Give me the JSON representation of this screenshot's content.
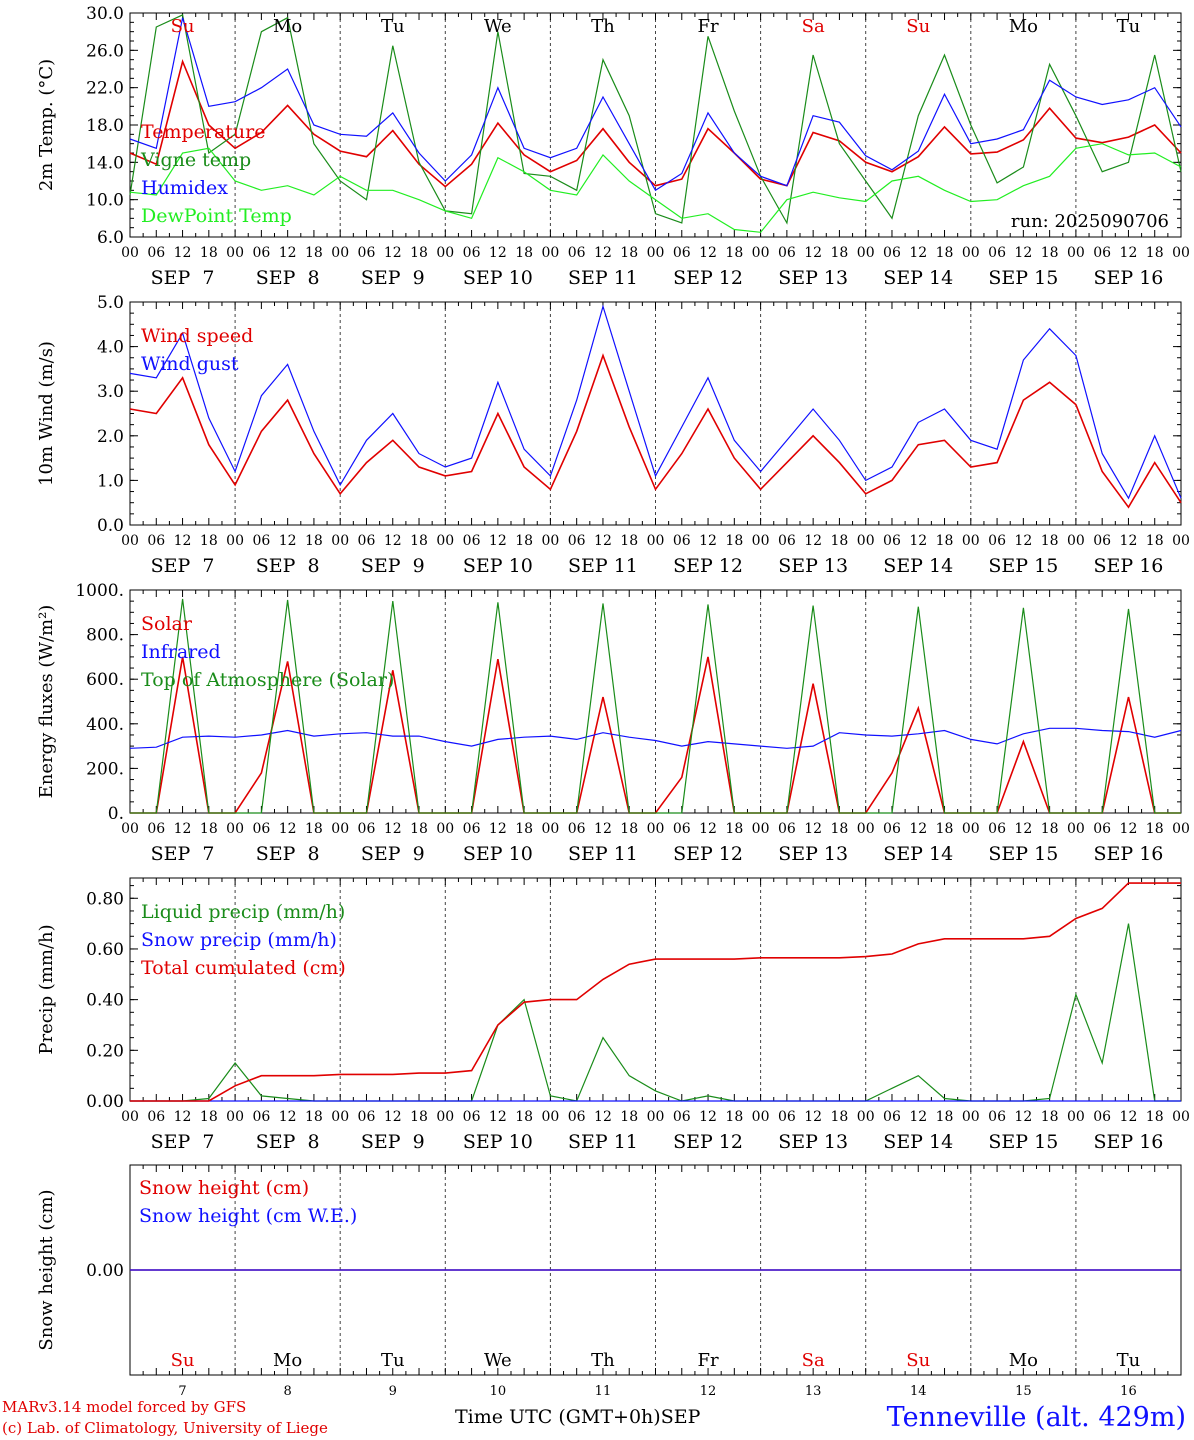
{
  "footer": {
    "model_line": "MARv3.14 model forced by GFS",
    "lab_line": "(c) Lab. of Climatology, University of Liege",
    "time_label": "Time UTC (GMT+0h)",
    "month_label": "SEP",
    "station": "Tenneville (alt. 429m)"
  },
  "colors": {
    "red": "#e00000",
    "green": "#1a8c1a",
    "blue": "#1010ff",
    "lightgreen": "#22ee22",
    "black": "#000000",
    "grid": "#555555"
  },
  "x_axis": {
    "days": [
      "SEP  7",
      "SEP  8",
      "SEP  9",
      "SEP 10",
      "SEP 11",
      "SEP 12",
      "SEP 13",
      "SEP 14",
      "SEP 15",
      "SEP 16"
    ],
    "day_numbers": [
      "7",
      "8",
      "9",
      "10",
      "11",
      "12",
      "13",
      "14",
      "15",
      "16"
    ],
    "weekdays": [
      "Su",
      "Mo",
      "Tu",
      "We",
      "Th",
      "Fr",
      "Sa",
      "Su",
      "Mo",
      "Tu"
    ],
    "weekday_colors": [
      "red",
      "black",
      "black",
      "black",
      "black",
      "black",
      "red",
      "red",
      "black",
      "black"
    ],
    "hour_ticks": [
      "00",
      "06",
      "12",
      "18"
    ],
    "final_tick": "00"
  },
  "chart_data": [
    {
      "type": "line",
      "ylabel": "2m Temp. (°C)",
      "ylim": [
        6,
        30
      ],
      "ytick_labels": [
        "6.0",
        "10.0",
        "14.0",
        "18.0",
        "22.0",
        "26.0",
        "30.0"
      ],
      "annotation": "run: 2025090706",
      "show_weekdays": true,
      "x_hours": [
        0,
        6,
        12,
        18,
        24,
        30,
        36,
        42,
        48,
        54,
        60,
        66,
        72,
        78,
        84,
        90,
        96,
        102,
        108,
        114,
        120,
        126,
        132,
        138,
        144,
        150,
        156,
        162,
        168,
        174,
        180,
        186,
        192,
        198,
        204,
        210,
        216,
        222,
        228,
        234,
        240
      ],
      "series": [
        {
          "name": "Temperature",
          "color": "red",
          "values": [
            15.0,
            13.8,
            24.8,
            18.0,
            15.5,
            17.2,
            20.1,
            17.0,
            15.2,
            14.6,
            17.4,
            13.8,
            11.4,
            13.8,
            18.2,
            14.8,
            13.0,
            14.2,
            17.6,
            14.0,
            11.5,
            12.2,
            17.6,
            15.0,
            12.2,
            11.5,
            17.2,
            16.3,
            14.0,
            13.0,
            14.6,
            17.8,
            14.9,
            15.1,
            16.4,
            19.8,
            16.6,
            16.1,
            16.7,
            18.0,
            15.0
          ]
        },
        {
          "name": "Vigne temp",
          "color": "green",
          "values": [
            10.5,
            28.5,
            29.8,
            15.0,
            17.0,
            28.0,
            29.5,
            16.0,
            12.0,
            10.0,
            26.5,
            14.0,
            8.8,
            8.5,
            28.0,
            12.8,
            12.5,
            11.0,
            25.0,
            19.0,
            8.5,
            7.5,
            27.5,
            19.5,
            12.5,
            7.5,
            25.5,
            16.0,
            12.0,
            8.0,
            19.0,
            25.5,
            18.0,
            11.8,
            13.5,
            24.5,
            19.0,
            13.0,
            14.0,
            25.5,
            13.0
          ]
        },
        {
          "name": "Humidex",
          "color": "blue",
          "values": [
            16.5,
            15.5,
            29.5,
            20.0,
            20.5,
            22.0,
            24.0,
            18.0,
            17.0,
            16.8,
            19.3,
            15.0,
            12.0,
            14.8,
            22.0,
            15.5,
            14.5,
            15.5,
            21.0,
            16.0,
            11.0,
            12.8,
            19.3,
            15.0,
            12.5,
            11.5,
            19.0,
            18.3,
            14.7,
            13.2,
            15.2,
            21.3,
            16.0,
            16.5,
            17.5,
            22.8,
            21.0,
            20.2,
            20.7,
            22.0,
            17.8
          ]
        },
        {
          "name": "DewPoint Temp",
          "color": "lightgreen",
          "values": [
            10.8,
            10.5,
            15.0,
            15.5,
            12.0,
            11.0,
            11.5,
            10.5,
            12.5,
            11.0,
            11.0,
            10.0,
            8.8,
            8.0,
            14.5,
            13.0,
            11.0,
            10.5,
            14.8,
            12.0,
            10.0,
            8.0,
            8.5,
            6.8,
            6.5,
            10.0,
            10.8,
            10.2,
            9.8,
            12.0,
            12.5,
            11.0,
            9.8,
            10.0,
            11.5,
            12.5,
            15.5,
            16.0,
            14.8,
            15.0,
            13.5
          ]
        }
      ]
    },
    {
      "type": "line",
      "ylabel": "10m Wind (m/s)",
      "ylim": [
        0,
        5
      ],
      "ytick_labels": [
        "0.0",
        "1.0",
        "2.0",
        "3.0",
        "4.0",
        "5.0"
      ],
      "show_weekdays": false,
      "x_hours": [
        0,
        6,
        12,
        18,
        24,
        30,
        36,
        42,
        48,
        54,
        60,
        66,
        72,
        78,
        84,
        90,
        96,
        102,
        108,
        114,
        120,
        126,
        132,
        138,
        144,
        150,
        156,
        162,
        168,
        174,
        180,
        186,
        192,
        198,
        204,
        210,
        216,
        222,
        228,
        234,
        240
      ],
      "series": [
        {
          "name": "Wind speed",
          "color": "red",
          "values": [
            2.6,
            2.5,
            3.3,
            1.8,
            0.9,
            2.1,
            2.8,
            1.6,
            0.7,
            1.4,
            1.9,
            1.3,
            1.1,
            1.2,
            2.5,
            1.3,
            0.8,
            2.1,
            3.8,
            2.2,
            0.8,
            1.6,
            2.6,
            1.5,
            0.8,
            1.4,
            2.0,
            1.4,
            0.7,
            1.0,
            1.8,
            1.9,
            1.3,
            1.4,
            2.8,
            3.2,
            2.7,
            1.2,
            0.4,
            1.4,
            0.5
          ]
        },
        {
          "name": "Wind gust",
          "color": "blue",
          "values": [
            3.4,
            3.3,
            4.3,
            2.4,
            1.2,
            2.9,
            3.6,
            2.1,
            0.9,
            1.9,
            2.5,
            1.6,
            1.3,
            1.5,
            3.2,
            1.7,
            1.1,
            2.8,
            4.9,
            3.0,
            1.1,
            2.2,
            3.3,
            1.9,
            1.2,
            1.9,
            2.6,
            1.9,
            1.0,
            1.3,
            2.3,
            2.6,
            1.9,
            1.7,
            3.7,
            4.4,
            3.8,
            1.6,
            0.6,
            2.0,
            0.6
          ]
        }
      ]
    },
    {
      "type": "line",
      "ylabel": "Energy fluxes (W/m²)",
      "ylim": [
        0,
        1000
      ],
      "ytick_labels": [
        "0.",
        "200.",
        "400.",
        "600.",
        "800.",
        "1000."
      ],
      "show_weekdays": false,
      "x_hours": [
        0,
        6,
        12,
        18,
        24,
        30,
        36,
        42,
        48,
        54,
        60,
        66,
        72,
        78,
        84,
        90,
        96,
        102,
        108,
        114,
        120,
        126,
        132,
        138,
        144,
        150,
        156,
        162,
        168,
        174,
        180,
        186,
        192,
        198,
        204,
        210,
        216,
        222,
        228,
        234,
        240
      ],
      "series": [
        {
          "name": "Solar",
          "color": "red",
          "values": [
            0,
            0,
            700,
            0,
            0,
            180,
            680,
            0,
            0,
            0,
            640,
            0,
            0,
            0,
            690,
            0,
            0,
            0,
            520,
            0,
            0,
            160,
            700,
            0,
            0,
            0,
            580,
            0,
            0,
            180,
            470,
            0,
            0,
            0,
            320,
            0,
            0,
            0,
            520,
            0,
            0
          ]
        },
        {
          "name": "Infrared",
          "color": "blue",
          "values": [
            290,
            295,
            340,
            345,
            340,
            350,
            370,
            345,
            355,
            360,
            345,
            345,
            320,
            300,
            330,
            340,
            345,
            330,
            360,
            340,
            325,
            300,
            320,
            310,
            300,
            290,
            300,
            360,
            350,
            345,
            355,
            370,
            330,
            310,
            355,
            380,
            380,
            370,
            365,
            340,
            370
          ]
        },
        {
          "name": "Top of Atmosphere (Solar)",
          "color": "green",
          "values": [
            0,
            0,
            960,
            0,
            0,
            0,
            955,
            0,
            0,
            0,
            950,
            0,
            0,
            0,
            945,
            0,
            0,
            0,
            940,
            0,
            0,
            0,
            935,
            0,
            0,
            0,
            930,
            0,
            0,
            0,
            925,
            0,
            0,
            0,
            920,
            0,
            0,
            0,
            915,
            0,
            0
          ]
        }
      ]
    },
    {
      "type": "line",
      "ylabel": "Precip (mm/h)",
      "ylim": [
        0,
        0.88
      ],
      "ytick_labels": [
        "0.00",
        "0.20",
        "0.40",
        "0.60",
        "0.80"
      ],
      "show_weekdays": false,
      "x_hours": [
        0,
        6,
        12,
        18,
        24,
        30,
        36,
        42,
        48,
        54,
        60,
        66,
        72,
        78,
        84,
        90,
        96,
        102,
        108,
        114,
        120,
        126,
        132,
        138,
        144,
        150,
        156,
        162,
        168,
        174,
        180,
        186,
        192,
        198,
        204,
        210,
        216,
        222,
        228,
        234,
        240
      ],
      "series": [
        {
          "name": "Liquid precip (mm/h)",
          "color": "green",
          "values": [
            0,
            0,
            0,
            0.01,
            0.15,
            0.02,
            0.01,
            0,
            0,
            0,
            0,
            0,
            0,
            0,
            0.3,
            0.4,
            0.02,
            0,
            0.25,
            0.1,
            0.04,
            0,
            0.02,
            0,
            0,
            0,
            0,
            0,
            0,
            0.05,
            0.1,
            0.01,
            0,
            0,
            0,
            0.01,
            0.42,
            0.15,
            0.7,
            0,
            0
          ]
        },
        {
          "name": "Snow precip (mm/h)",
          "color": "blue",
          "values": [
            0,
            0,
            0,
            0,
            0,
            0,
            0,
            0,
            0,
            0,
            0,
            0,
            0,
            0,
            0,
            0,
            0,
            0,
            0,
            0,
            0,
            0,
            0,
            0,
            0,
            0,
            0,
            0,
            0,
            0,
            0,
            0,
            0,
            0,
            0,
            0,
            0,
            0,
            0,
            0,
            0
          ]
        },
        {
          "name": "Total cumulated (cm)",
          "color": "red",
          "values": [
            0,
            0,
            0,
            0,
            0.06,
            0.1,
            0.1,
            0.1,
            0.105,
            0.105,
            0.105,
            0.11,
            0.11,
            0.12,
            0.3,
            0.39,
            0.4,
            0.4,
            0.48,
            0.54,
            0.56,
            0.56,
            0.56,
            0.56,
            0.565,
            0.565,
            0.565,
            0.565,
            0.57,
            0.58,
            0.62,
            0.64,
            0.64,
            0.64,
            0.64,
            0.65,
            0.72,
            0.76,
            0.86,
            0.86,
            0.86
          ]
        }
      ]
    },
    {
      "type": "line",
      "ylabel": "Snow height (cm)",
      "ylim": [
        -1,
        1
      ],
      "ytick_labels": [
        "0.00"
      ],
      "show_weekdays": true,
      "x_hours": [
        0,
        240
      ],
      "series": [
        {
          "name": "Snow height (cm)",
          "color": "red",
          "values": [
            0,
            0
          ]
        },
        {
          "name": "Snow height (cm W.E.)",
          "color": "blue",
          "values": [
            0,
            0
          ]
        }
      ]
    }
  ]
}
